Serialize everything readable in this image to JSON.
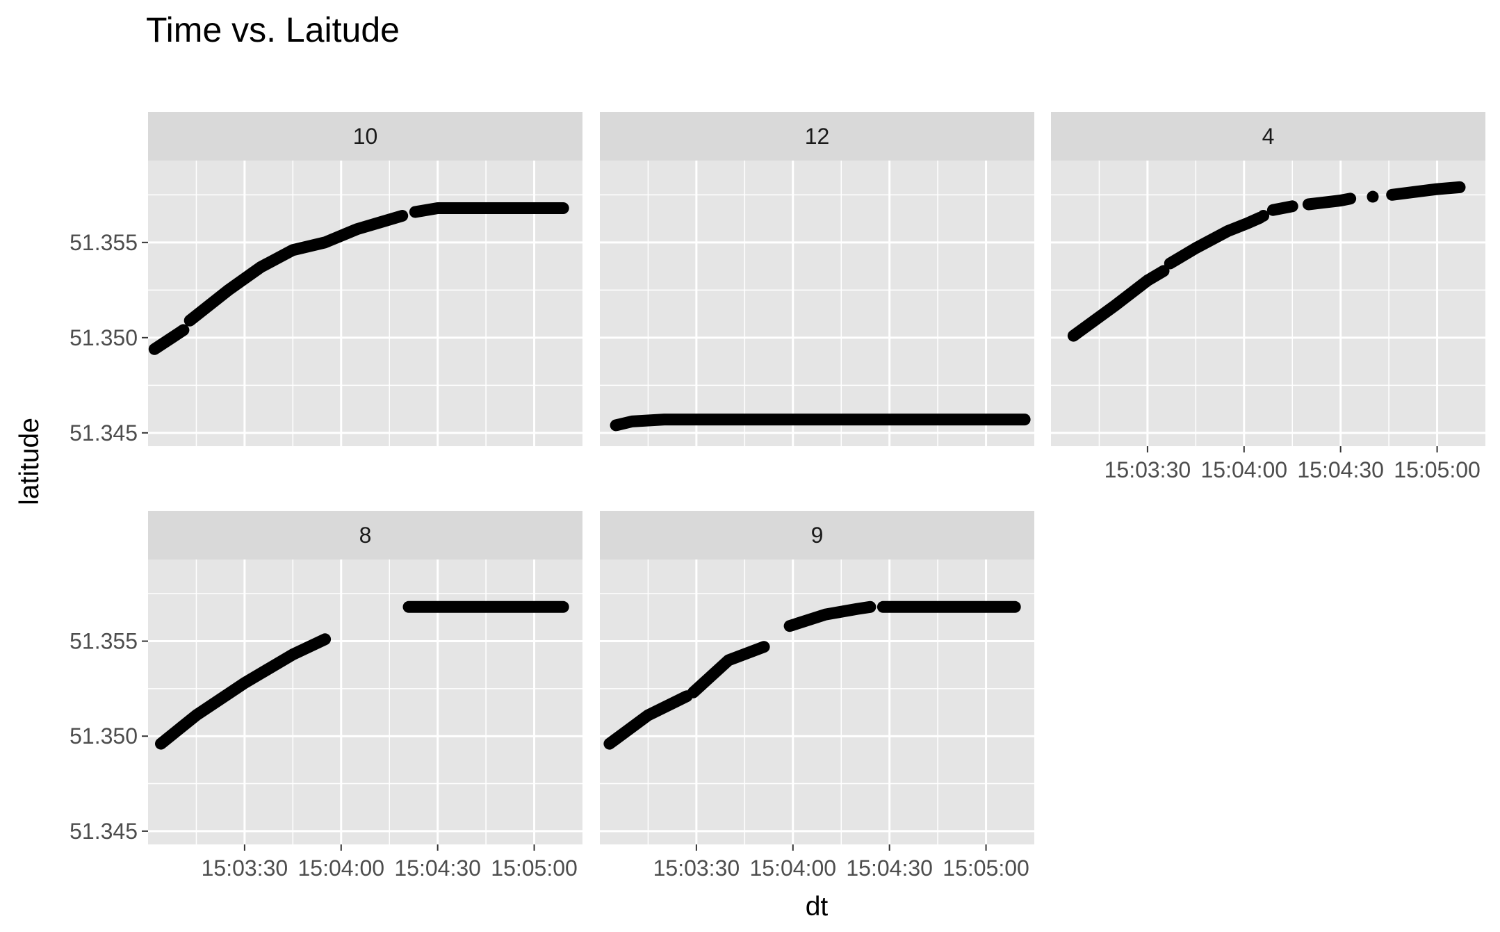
{
  "chart_data": {
    "type": "scatter",
    "title": "Time vs. Laitude",
    "xlabel": "dt",
    "ylabel": "latitude",
    "facet_variable_levels": [
      "10",
      "12",
      "4",
      "8",
      "9"
    ],
    "x_unit": "time (hh:mm:ss)",
    "xlim": [
      "15:03:00",
      "15:05:15"
    ],
    "ylim": [
      51.3443,
      51.3593
    ],
    "x_ticks": [
      "15:03:30",
      "15:04:00",
      "15:04:30",
      "15:05:00"
    ],
    "y_ticks": [
      "51.345",
      "51.350",
      "51.355"
    ],
    "grid": true,
    "point_color": "#000000",
    "panel_background": "#e5e5e5",
    "strip_background": "#d9d9d9",
    "grid_color": "#ffffff",
    "panels": [
      {
        "label": "10",
        "segments": [
          {
            "points": [
              [
                "15:03:02",
                51.3494
              ],
              [
                "15:03:11",
                51.3504
              ]
            ]
          },
          {
            "points": [
              [
                "15:03:13",
                51.3509
              ],
              [
                "15:03:25",
                51.3525
              ],
              [
                "15:03:35",
                51.3537
              ],
              [
                "15:03:45",
                51.3546
              ],
              [
                "15:03:55",
                51.355
              ],
              [
                "15:04:05",
                51.3557
              ],
              [
                "15:04:13",
                51.3561
              ],
              [
                "15:04:19",
                51.3564
              ]
            ]
          },
          {
            "points": [
              [
                "15:04:23",
                51.3566
              ],
              [
                "15:04:30",
                51.3568
              ],
              [
                "15:04:45",
                51.3568
              ],
              [
                "15:05:00",
                51.3568
              ],
              [
                "15:05:09",
                51.3568
              ]
            ]
          }
        ]
      },
      {
        "label": "12",
        "segments": [
          {
            "points": [
              [
                "15:03:05",
                51.3454
              ],
              [
                "15:03:10",
                51.3456
              ],
              [
                "15:03:20",
                51.3457
              ],
              [
                "15:03:40",
                51.3457
              ],
              [
                "15:04:00",
                51.3457
              ],
              [
                "15:04:30",
                51.3457
              ],
              [
                "15:05:00",
                51.3457
              ],
              [
                "15:05:12",
                51.3457
              ]
            ]
          }
        ]
      },
      {
        "label": "4",
        "segments": [
          {
            "points": [
              [
                "15:03:07",
                51.3501
              ],
              [
                "15:03:20",
                51.3517
              ],
              [
                "15:03:30",
                51.353
              ],
              [
                "15:03:35",
                51.3535
              ]
            ]
          },
          {
            "points": [
              [
                "15:03:37",
                51.3539
              ],
              [
                "15:03:45",
                51.3547
              ],
              [
                "15:03:55",
                51.3556
              ],
              [
                "15:04:01",
                51.356
              ],
              [
                "15:04:05",
                51.3563
              ]
            ]
          },
          {
            "points": [
              [
                "15:04:06",
                51.3564
              ]
            ]
          },
          {
            "points": [
              [
                "15:04:09",
                51.3567
              ],
              [
                "15:04:15",
                51.3569
              ]
            ]
          },
          {
            "points": [
              [
                "15:04:20",
                51.357
              ],
              [
                "15:04:30",
                51.3572
              ],
              [
                "15:04:33",
                51.3573
              ]
            ]
          },
          {
            "points": [
              [
                "15:04:40",
                51.3574
              ]
            ]
          },
          {
            "points": [
              [
                "15:04:46",
                51.3575
              ],
              [
                "15:05:00",
                51.3578
              ],
              [
                "15:05:07",
                51.3579
              ]
            ]
          }
        ]
      },
      {
        "label": "8",
        "segments": [
          {
            "points": [
              [
                "15:03:04",
                51.3496
              ],
              [
                "15:03:15",
                51.3511
              ],
              [
                "15:03:30",
                51.3528
              ],
              [
                "15:03:45",
                51.3543
              ],
              [
                "15:03:55",
                51.3551
              ]
            ]
          },
          {
            "points": [
              [
                "15:04:21",
                51.3568
              ],
              [
                "15:04:45",
                51.3568
              ],
              [
                "15:05:05",
                51.3568
              ],
              [
                "15:05:09",
                51.3568
              ]
            ]
          }
        ]
      },
      {
        "label": "9",
        "segments": [
          {
            "points": [
              [
                "15:03:03",
                51.3496
              ],
              [
                "15:03:15",
                51.3511
              ],
              [
                "15:03:27",
                51.3521
              ]
            ]
          },
          {
            "points": [
              [
                "15:03:29",
                51.3523
              ],
              [
                "15:03:40",
                51.354
              ],
              [
                "15:03:51",
                51.3547
              ]
            ]
          },
          {
            "points": [
              [
                "15:03:59",
                51.3558
              ],
              [
                "15:04:10",
                51.3564
              ],
              [
                "15:04:20",
                51.3567
              ],
              [
                "15:04:24",
                51.3568
              ]
            ]
          },
          {
            "points": [
              [
                "15:04:28",
                51.3568
              ],
              [
                "15:04:45",
                51.3568
              ],
              [
                "15:05:00",
                51.3568
              ],
              [
                "15:05:09",
                51.3568
              ]
            ]
          }
        ]
      }
    ]
  }
}
